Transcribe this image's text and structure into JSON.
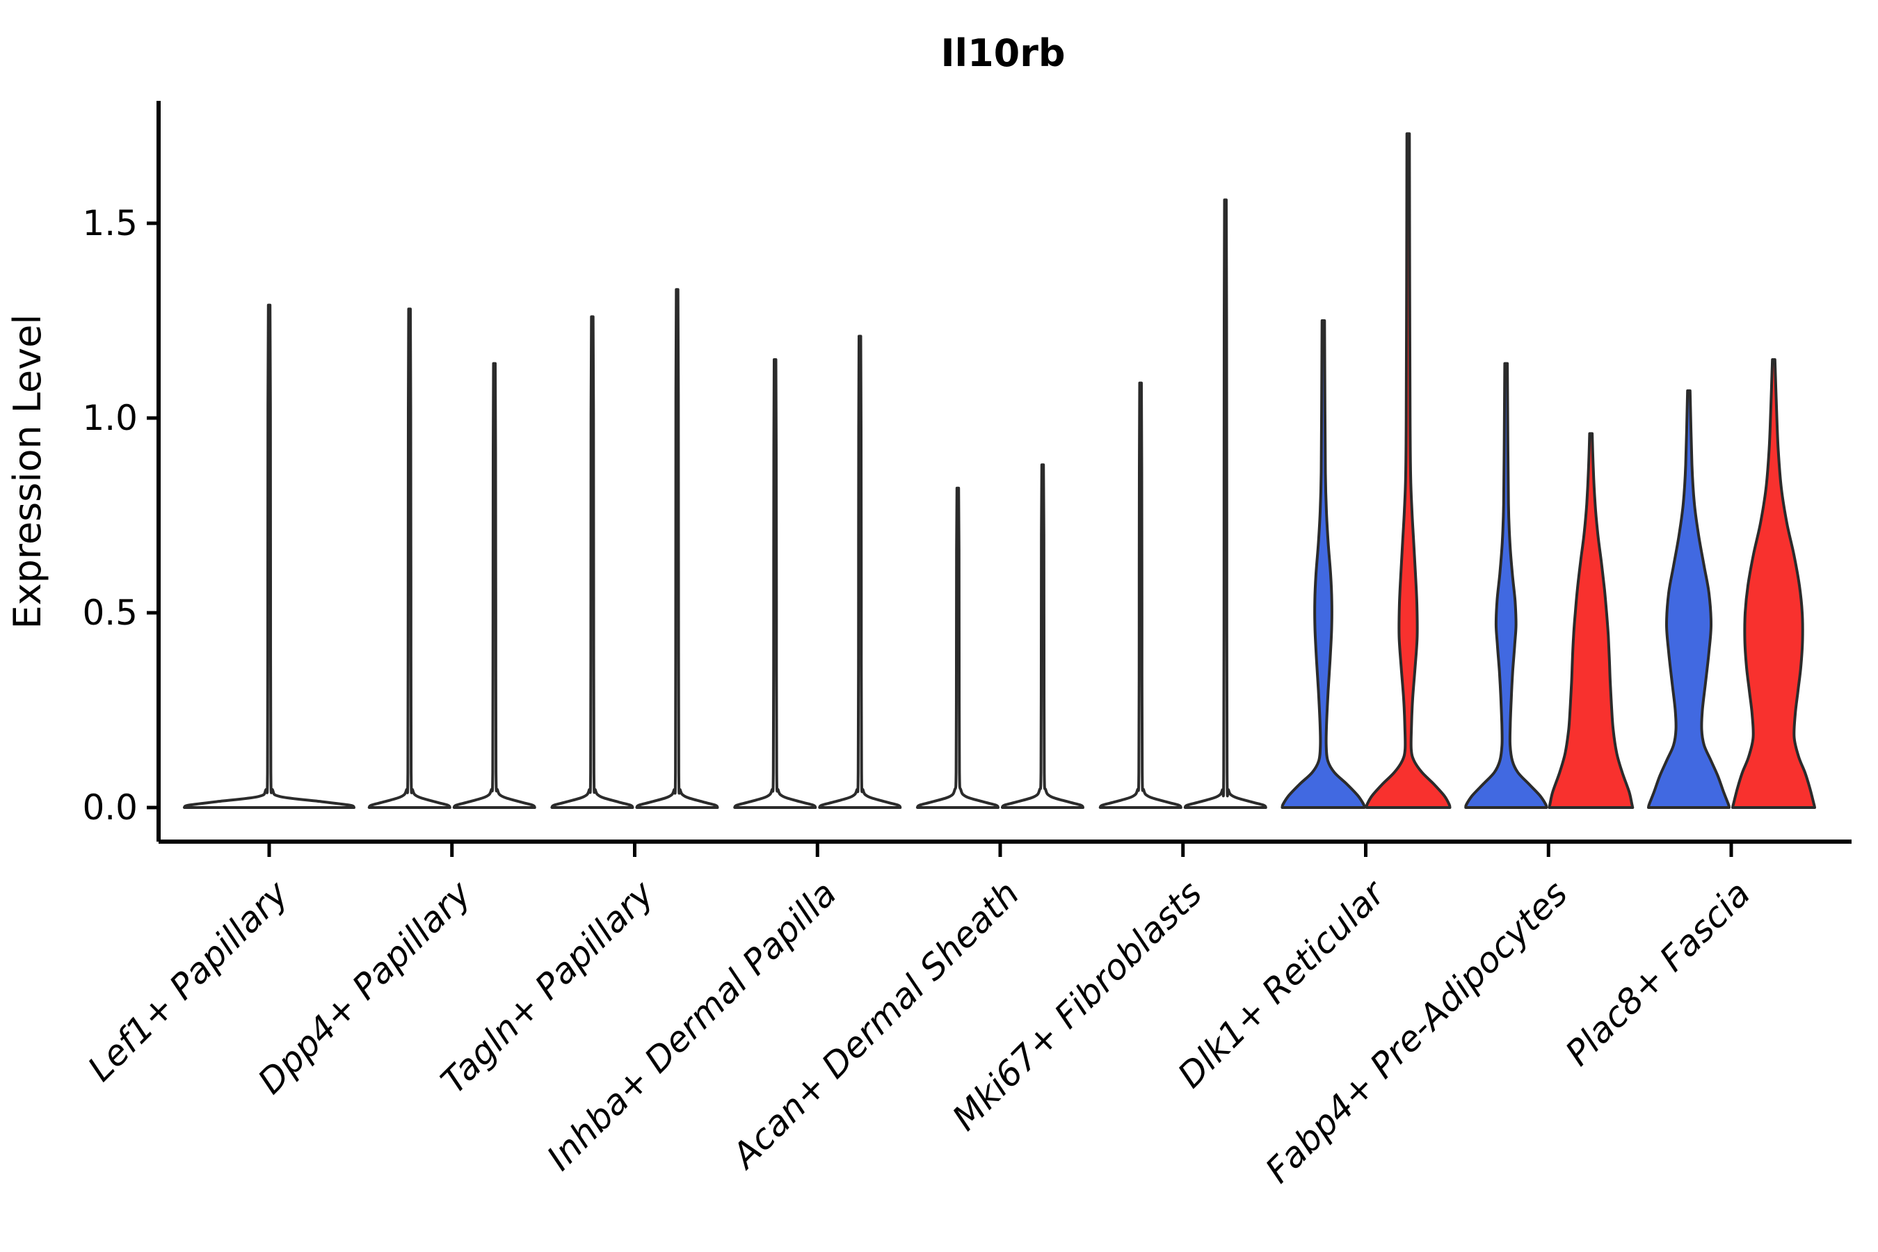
{
  "chart_data": {
    "type": "violin",
    "title": "Il10rb",
    "ylabel": "Expression Level",
    "xlabel": "",
    "ylim": [
      0,
      1.85
    ],
    "yticks": [
      "0.0",
      "0.5",
      "1.0",
      "1.5"
    ],
    "ytick_values": [
      0.0,
      0.5,
      1.0,
      1.5
    ],
    "grid": "off",
    "legend": "none",
    "colors": {
      "blue": "#4169E1",
      "red": "#F8312E",
      "white": "#FFFFFF",
      "outline": "#2B2B2B",
      "axis": "#000000"
    },
    "categories": [
      "Lef1+ Papillary",
      "Dpp4+ Papillary",
      "Tagln+ Papillary",
      "Inhba+ Dermal Papilla",
      "Acan+ Dermal Sheath",
      "Mki67+ Fibroblasts",
      "Dlk1+ Reticular",
      "Fabp4+ Pre-Adipocytes",
      "Plac8+ Fascia"
    ],
    "violins": [
      {
        "category": "Lef1+ Papillary",
        "group": "single",
        "fill": "white",
        "max_expression": 1.29,
        "density_profile": [
          [
            0,
            122
          ],
          [
            0.006,
            116
          ],
          [
            0.015,
            76
          ],
          [
            0.028,
            16
          ],
          [
            0.045,
            5
          ],
          [
            0.09,
            2.4
          ],
          [
            0.58,
            2
          ],
          [
            1.03,
            1.8
          ],
          [
            1.29,
            1.2
          ]
        ]
      },
      {
        "category": "Dpp4+ Papillary",
        "group": "left",
        "fill": "white",
        "max_expression": 1.28,
        "density_profile": [
          [
            0,
            58
          ],
          [
            0.006,
            55
          ],
          [
            0.015,
            36
          ],
          [
            0.028,
            12
          ],
          [
            0.045,
            4.5
          ],
          [
            0.09,
            2.4
          ],
          [
            0.58,
            2
          ],
          [
            1.02,
            1.8
          ],
          [
            1.28,
            1.2
          ]
        ]
      },
      {
        "category": "Dpp4+ Papillary",
        "group": "right",
        "fill": "white",
        "max_expression": 1.14,
        "density_profile": [
          [
            0,
            58
          ],
          [
            0.006,
            55
          ],
          [
            0.015,
            36
          ],
          [
            0.028,
            12
          ],
          [
            0.045,
            4.5
          ],
          [
            0.09,
            2.4
          ],
          [
            0.51,
            2
          ],
          [
            0.91,
            1.8
          ],
          [
            1.14,
            1.2
          ]
        ]
      },
      {
        "category": "Tagln+ Papillary",
        "group": "left",
        "fill": "white",
        "max_expression": 1.26,
        "density_profile": [
          [
            0,
            58
          ],
          [
            0.006,
            55
          ],
          [
            0.015,
            36
          ],
          [
            0.028,
            12
          ],
          [
            0.045,
            4.5
          ],
          [
            0.09,
            2.4
          ],
          [
            0.57,
            2
          ],
          [
            1.01,
            1.8
          ],
          [
            1.26,
            1.2
          ]
        ]
      },
      {
        "category": "Tagln+ Papillary",
        "group": "right",
        "fill": "white",
        "max_expression": 1.33,
        "density_profile": [
          [
            0,
            58
          ],
          [
            0.006,
            55
          ],
          [
            0.015,
            36
          ],
          [
            0.028,
            12
          ],
          [
            0.045,
            4.5
          ],
          [
            0.09,
            2.4
          ],
          [
            0.6,
            2
          ],
          [
            1.06,
            1.8
          ],
          [
            1.33,
            1.2
          ]
        ]
      },
      {
        "category": "Inhba+ Dermal Papilla",
        "group": "left",
        "fill": "white",
        "max_expression": 1.15,
        "density_profile": [
          [
            0,
            58
          ],
          [
            0.006,
            55
          ],
          [
            0.015,
            36
          ],
          [
            0.028,
            12
          ],
          [
            0.045,
            4.5
          ],
          [
            0.09,
            2.4
          ],
          [
            0.52,
            2
          ],
          [
            0.92,
            1.8
          ],
          [
            1.15,
            1.2
          ]
        ]
      },
      {
        "category": "Inhba+ Dermal Papilla",
        "group": "right",
        "fill": "white",
        "max_expression": 1.21,
        "density_profile": [
          [
            0,
            58
          ],
          [
            0.006,
            55
          ],
          [
            0.015,
            36
          ],
          [
            0.028,
            12
          ],
          [
            0.045,
            4.5
          ],
          [
            0.09,
            2.4
          ],
          [
            0.54,
            2
          ],
          [
            0.97,
            1.8
          ],
          [
            1.21,
            1.2
          ]
        ]
      },
      {
        "category": "Acan+ Dermal Sheath",
        "group": "left",
        "fill": "white",
        "max_expression": 0.82,
        "density_profile": [
          [
            0,
            58
          ],
          [
            0.006,
            55
          ],
          [
            0.015,
            36
          ],
          [
            0.028,
            12
          ],
          [
            0.045,
            4.5
          ],
          [
            0.09,
            2.4
          ],
          [
            0.37,
            2
          ],
          [
            0.66,
            1.8
          ],
          [
            0.82,
            1.2
          ]
        ]
      },
      {
        "category": "Acan+ Dermal Sheath",
        "group": "right",
        "fill": "white",
        "max_expression": 0.88,
        "density_profile": [
          [
            0,
            58
          ],
          [
            0.006,
            55
          ],
          [
            0.015,
            36
          ],
          [
            0.028,
            12
          ],
          [
            0.045,
            4.5
          ],
          [
            0.09,
            2.4
          ],
          [
            0.4,
            2
          ],
          [
            0.7,
            1.8
          ],
          [
            0.88,
            1.2
          ]
        ]
      },
      {
        "category": "Mki67+ Fibroblasts",
        "group": "left",
        "fill": "white",
        "max_expression": 1.09,
        "density_profile": [
          [
            0,
            58
          ],
          [
            0.006,
            55
          ],
          [
            0.015,
            36
          ],
          [
            0.028,
            12
          ],
          [
            0.045,
            4.5
          ],
          [
            0.09,
            2.4
          ],
          [
            0.49,
            2
          ],
          [
            0.87,
            1.8
          ],
          [
            1.09,
            1.2
          ]
        ]
      },
      {
        "category": "Mki67+ Fibroblasts",
        "group": "right",
        "fill": "white",
        "max_expression": 1.56,
        "density_profile": [
          [
            0,
            58
          ],
          [
            0.006,
            55
          ],
          [
            0.015,
            36
          ],
          [
            0.028,
            12
          ],
          [
            0.045,
            4.5
          ],
          [
            0.09,
            2.4
          ],
          [
            0.7,
            2
          ],
          [
            1.25,
            1.8
          ],
          [
            1.56,
            1.2
          ]
        ]
      },
      {
        "category": "Dlk1+ Reticular",
        "group": "left",
        "fill": "blue",
        "max_expression": 1.25,
        "density_profile": [
          [
            0,
            59
          ],
          [
            0.008,
            58
          ],
          [
            0.03,
            50
          ],
          [
            0.06,
            34
          ],
          [
            0.09,
            16
          ],
          [
            0.12,
            6.5
          ],
          [
            0.16,
            4.2
          ],
          [
            0.22,
            4.8
          ],
          [
            0.3,
            7
          ],
          [
            0.38,
            9.8
          ],
          [
            0.46,
            12
          ],
          [
            0.53,
            12.2
          ],
          [
            0.6,
            10.5
          ],
          [
            0.68,
            7
          ],
          [
            0.76,
            4.5
          ],
          [
            0.86,
            3
          ],
          [
            1.02,
            2.4
          ],
          [
            1.25,
            1.8
          ]
        ]
      },
      {
        "category": "Dlk1+ Reticular",
        "group": "right",
        "fill": "red",
        "max_expression": 1.73,
        "density_profile": [
          [
            0,
            60
          ],
          [
            0.008,
            59
          ],
          [
            0.03,
            52
          ],
          [
            0.06,
            37
          ],
          [
            0.09,
            20
          ],
          [
            0.12,
            8.5
          ],
          [
            0.15,
            4.4
          ],
          [
            0.21,
            4.8
          ],
          [
            0.28,
            6.5
          ],
          [
            0.36,
            10
          ],
          [
            0.44,
            13
          ],
          [
            0.52,
            12.6
          ],
          [
            0.6,
            10.5
          ],
          [
            0.68,
            8
          ],
          [
            0.76,
            5.5
          ],
          [
            0.85,
            3.6
          ],
          [
            1.0,
            2.8
          ],
          [
            1.35,
            2.2
          ],
          [
            1.73,
            1.8
          ]
        ]
      },
      {
        "category": "Fabp4+ Pre-Adipocytes",
        "group": "left",
        "fill": "blue",
        "max_expression": 1.14,
        "density_profile": [
          [
            0,
            58
          ],
          [
            0.008,
            57
          ],
          [
            0.03,
            49
          ],
          [
            0.06,
            33
          ],
          [
            0.09,
            17
          ],
          [
            0.12,
            9
          ],
          [
            0.16,
            5.8
          ],
          [
            0.21,
            6
          ],
          [
            0.28,
            7.5
          ],
          [
            0.35,
            9.6
          ],
          [
            0.42,
            12.6
          ],
          [
            0.47,
            14.3
          ],
          [
            0.53,
            13
          ],
          [
            0.6,
            9
          ],
          [
            0.68,
            5.5
          ],
          [
            0.78,
            3.4
          ],
          [
            0.95,
            2.6
          ],
          [
            1.14,
            1.8
          ]
        ]
      },
      {
        "category": "Fabp4+ Pre-Adipocytes",
        "group": "right",
        "fill": "red",
        "max_expression": 0.96,
        "density_profile": [
          [
            0,
            60
          ],
          [
            0.008,
            59
          ],
          [
            0.04,
            55
          ],
          [
            0.09,
            45
          ],
          [
            0.14,
            37
          ],
          [
            0.2,
            32
          ],
          [
            0.26,
            29.7
          ],
          [
            0.32,
            27.8
          ],
          [
            0.38,
            26.6
          ],
          [
            0.44,
            25
          ],
          [
            0.5,
            22.5
          ],
          [
            0.56,
            19.5
          ],
          [
            0.63,
            15
          ],
          [
            0.7,
            10
          ],
          [
            0.78,
            6
          ],
          [
            0.87,
            3.4
          ],
          [
            0.96,
            1.8
          ]
        ]
      },
      {
        "category": "Plac8+ Fascia",
        "group": "left",
        "fill": "blue",
        "max_expression": 1.07,
        "density_profile": [
          [
            0,
            58
          ],
          [
            0.008,
            57
          ],
          [
            0.04,
            50
          ],
          [
            0.08,
            42
          ],
          [
            0.12,
            32
          ],
          [
            0.16,
            22
          ],
          [
            0.2,
            18.5
          ],
          [
            0.25,
            19.5
          ],
          [
            0.32,
            24
          ],
          [
            0.4,
            29
          ],
          [
            0.47,
            32
          ],
          [
            0.55,
            29
          ],
          [
            0.62,
            22
          ],
          [
            0.7,
            14
          ],
          [
            0.78,
            8
          ],
          [
            0.88,
            4.5
          ],
          [
            1.07,
            1.8
          ]
        ]
      },
      {
        "category": "Plac8+ Fascia",
        "group": "right",
        "fill": "red",
        "max_expression": 1.15,
        "density_profile": [
          [
            0,
            59
          ],
          [
            0.008,
            58
          ],
          [
            0.05,
            52
          ],
          [
            0.09,
            45
          ],
          [
            0.13,
            36
          ],
          [
            0.18,
            29.5
          ],
          [
            0.24,
            31
          ],
          [
            0.3,
            35
          ],
          [
            0.36,
            39
          ],
          [
            0.43,
            41.5
          ],
          [
            0.5,
            41
          ],
          [
            0.57,
            37
          ],
          [
            0.65,
            29
          ],
          [
            0.73,
            19
          ],
          [
            0.82,
            11
          ],
          [
            0.92,
            6.5
          ],
          [
            1.03,
            4
          ],
          [
            1.15,
            1.8
          ]
        ]
      }
    ]
  }
}
